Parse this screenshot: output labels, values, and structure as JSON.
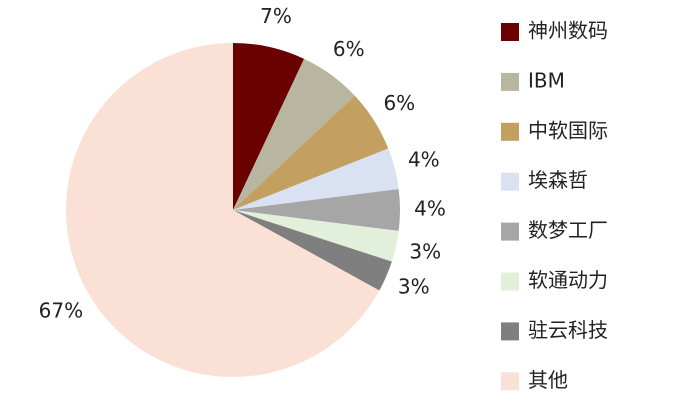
{
  "chart_data": {
    "type": "pie",
    "categories": [
      "神州数码",
      "IBM",
      "中软国际",
      "埃森哲",
      "数梦工厂",
      "软通动力",
      "驻云科技",
      "其他"
    ],
    "values": [
      7,
      6,
      6,
      4,
      4,
      3,
      3,
      67
    ],
    "value_labels": [
      "7%",
      "6%",
      "6%",
      "4%",
      "4%",
      "3%",
      "3%",
      "67%"
    ],
    "colors": [
      "#6b0000",
      "#b8b5a0",
      "#c4a060",
      "#d9e1f2",
      "#a6a6a6",
      "#e2efda",
      "#7f7f7f",
      "#fbe1d5"
    ],
    "legend": "right"
  }
}
